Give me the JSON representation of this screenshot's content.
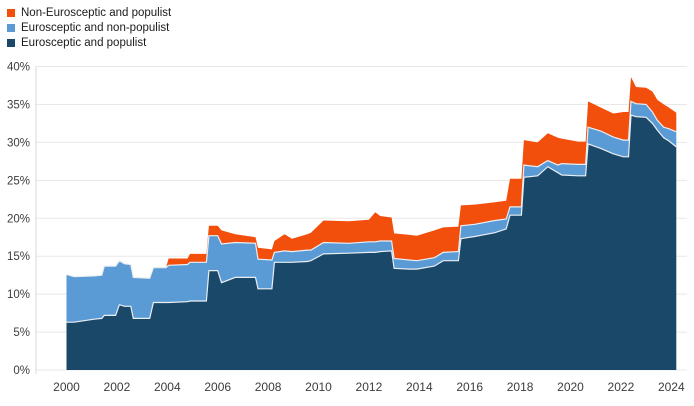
{
  "legend": {
    "items": [
      {
        "label": "Non-Eurosceptic and populist",
        "color": "#f24e0c"
      },
      {
        "label": "Eurosceptic and non-populist",
        "color": "#5b9bd5"
      },
      {
        "label": "Eurosceptic and populist",
        "color": "#1a4869"
      }
    ]
  },
  "chart_data": {
    "type": "area",
    "stacked": true,
    "title": "",
    "xlabel": "",
    "ylabel": "",
    "unit": "%",
    "ylim": [
      0,
      40
    ],
    "yticks": [
      0,
      5,
      10,
      15,
      20,
      25,
      30,
      35,
      40
    ],
    "xticks": [
      2000,
      2002,
      2004,
      2006,
      2008,
      2010,
      2012,
      2014,
      2016,
      2018,
      2020,
      2022,
      2024
    ],
    "grid": true,
    "legend_position": "top-left",
    "x": [
      2000.0,
      2000.3,
      2001.1,
      2001.4,
      2001.5,
      2001.95,
      2002.1,
      2002.3,
      2002.55,
      2002.65,
      2003.3,
      2003.45,
      2003.95,
      2004.05,
      2004.8,
      2004.9,
      2005.55,
      2005.65,
      2006.0,
      2006.15,
      2006.7,
      2007.5,
      2007.6,
      2008.15,
      2008.25,
      2008.65,
      2008.95,
      2009.55,
      2009.7,
      2010.2,
      2011.2,
      2012.0,
      2012.25,
      2012.45,
      2012.9,
      2013.0,
      2013.6,
      2013.9,
      2014.6,
      2014.95,
      2015.55,
      2015.65,
      2016.2,
      2017.0,
      2017.45,
      2017.6,
      2018.05,
      2018.15,
      2018.7,
      2019.1,
      2019.5,
      2019.65,
      2020.3,
      2020.6,
      2020.7,
      2021.2,
      2021.7,
      2022.1,
      2022.3,
      2022.4,
      2022.6,
      2023.0,
      2023.25,
      2023.45,
      2023.7,
      2023.9,
      2024.2
    ],
    "series": [
      {
        "name": "Eurosceptic and populist",
        "color": "#1a4869",
        "values": [
          6.3,
          6.3,
          6.7,
          6.8,
          7.2,
          7.2,
          8.6,
          8.4,
          8.4,
          6.8,
          6.8,
          8.9,
          8.9,
          8.9,
          9.0,
          9.1,
          9.1,
          13.1,
          13.1,
          11.5,
          12.2,
          12.2,
          10.7,
          10.7,
          14.2,
          14.2,
          14.2,
          14.3,
          14.4,
          15.3,
          15.4,
          15.5,
          15.5,
          15.6,
          15.7,
          13.4,
          13.3,
          13.3,
          13.7,
          14.4,
          14.4,
          17.3,
          17.6,
          18.1,
          18.6,
          20.4,
          20.4,
          25.4,
          25.6,
          26.8,
          26.0,
          25.7,
          25.6,
          25.6,
          29.8,
          29.2,
          28.5,
          28.1,
          28.1,
          33.6,
          33.4,
          33.3,
          32.5,
          31.6,
          30.6,
          30.2,
          29.4
        ]
      },
      {
        "name": "Eurosceptic and non-populist",
        "color": "#5b9bd5",
        "values": [
          6.3,
          6.0,
          5.7,
          5.7,
          6.5,
          6.5,
          5.8,
          5.6,
          5.5,
          5.4,
          5.3,
          4.6,
          4.6,
          4.9,
          4.9,
          5.1,
          5.1,
          4.6,
          4.6,
          5.1,
          4.6,
          4.5,
          3.9,
          3.8,
          1.3,
          1.5,
          1.4,
          1.5,
          1.4,
          1.5,
          1.3,
          1.4,
          1.4,
          1.4,
          1.3,
          1.3,
          1.2,
          1.1,
          1.1,
          1.1,
          1.2,
          1.7,
          1.6,
          1.6,
          1.3,
          1.1,
          1.1,
          1.6,
          1.2,
          0.8,
          1.0,
          1.5,
          1.5,
          1.5,
          2.2,
          2.3,
          2.2,
          2.2,
          2.2,
          1.8,
          1.7,
          1.7,
          1.5,
          1.3,
          1.4,
          1.6,
          2.0
        ]
      },
      {
        "name": "Non-Eurosceptic and populist",
        "color": "#f24e0c",
        "values": [
          0,
          0,
          0,
          0,
          0,
          0,
          0,
          0,
          0,
          0,
          0,
          0,
          0,
          0.9,
          0.8,
          1.1,
          1.1,
          1.3,
          1.3,
          1.8,
          1.1,
          0.8,
          1.5,
          1.4,
          1.5,
          2.2,
          1.7,
          2.1,
          2.3,
          2.9,
          2.9,
          2.9,
          3.9,
          3.3,
          3.1,
          3.3,
          3.3,
          3.3,
          3.6,
          3.3,
          3.3,
          2.7,
          2.6,
          2.4,
          2.4,
          3.7,
          3.7,
          3.3,
          3.2,
          3.6,
          3.6,
          3.3,
          3.0,
          3.0,
          3.4,
          3.1,
          3.1,
          3.7,
          3.7,
          3.2,
          2.2,
          2.2,
          2.7,
          2.7,
          3.0,
          2.8,
          2.5
        ]
      }
    ]
  }
}
